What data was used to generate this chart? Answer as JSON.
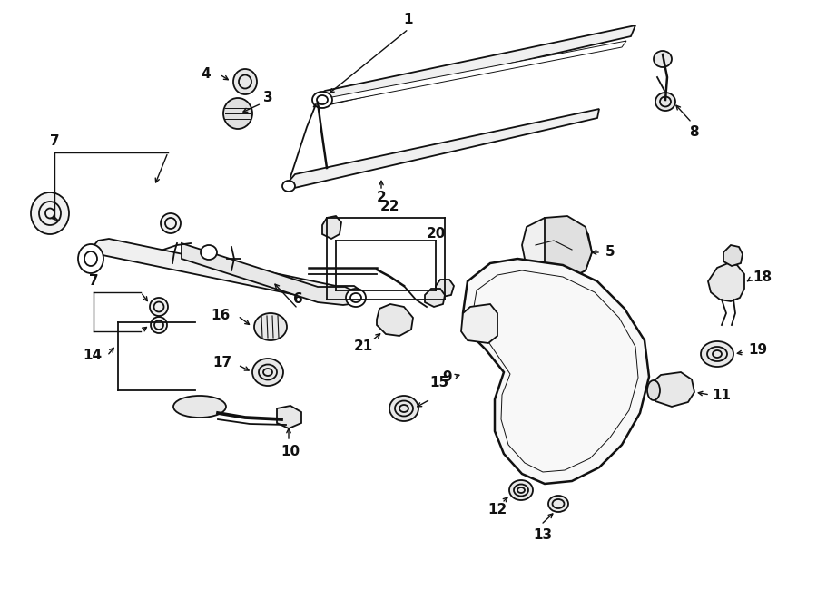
{
  "bg_color": "#ffffff",
  "fig_width": 9.0,
  "fig_height": 6.61,
  "dpi": 100,
  "line_color": "#111111",
  "label_fontsize": 11,
  "label_fontweight": "bold"
}
